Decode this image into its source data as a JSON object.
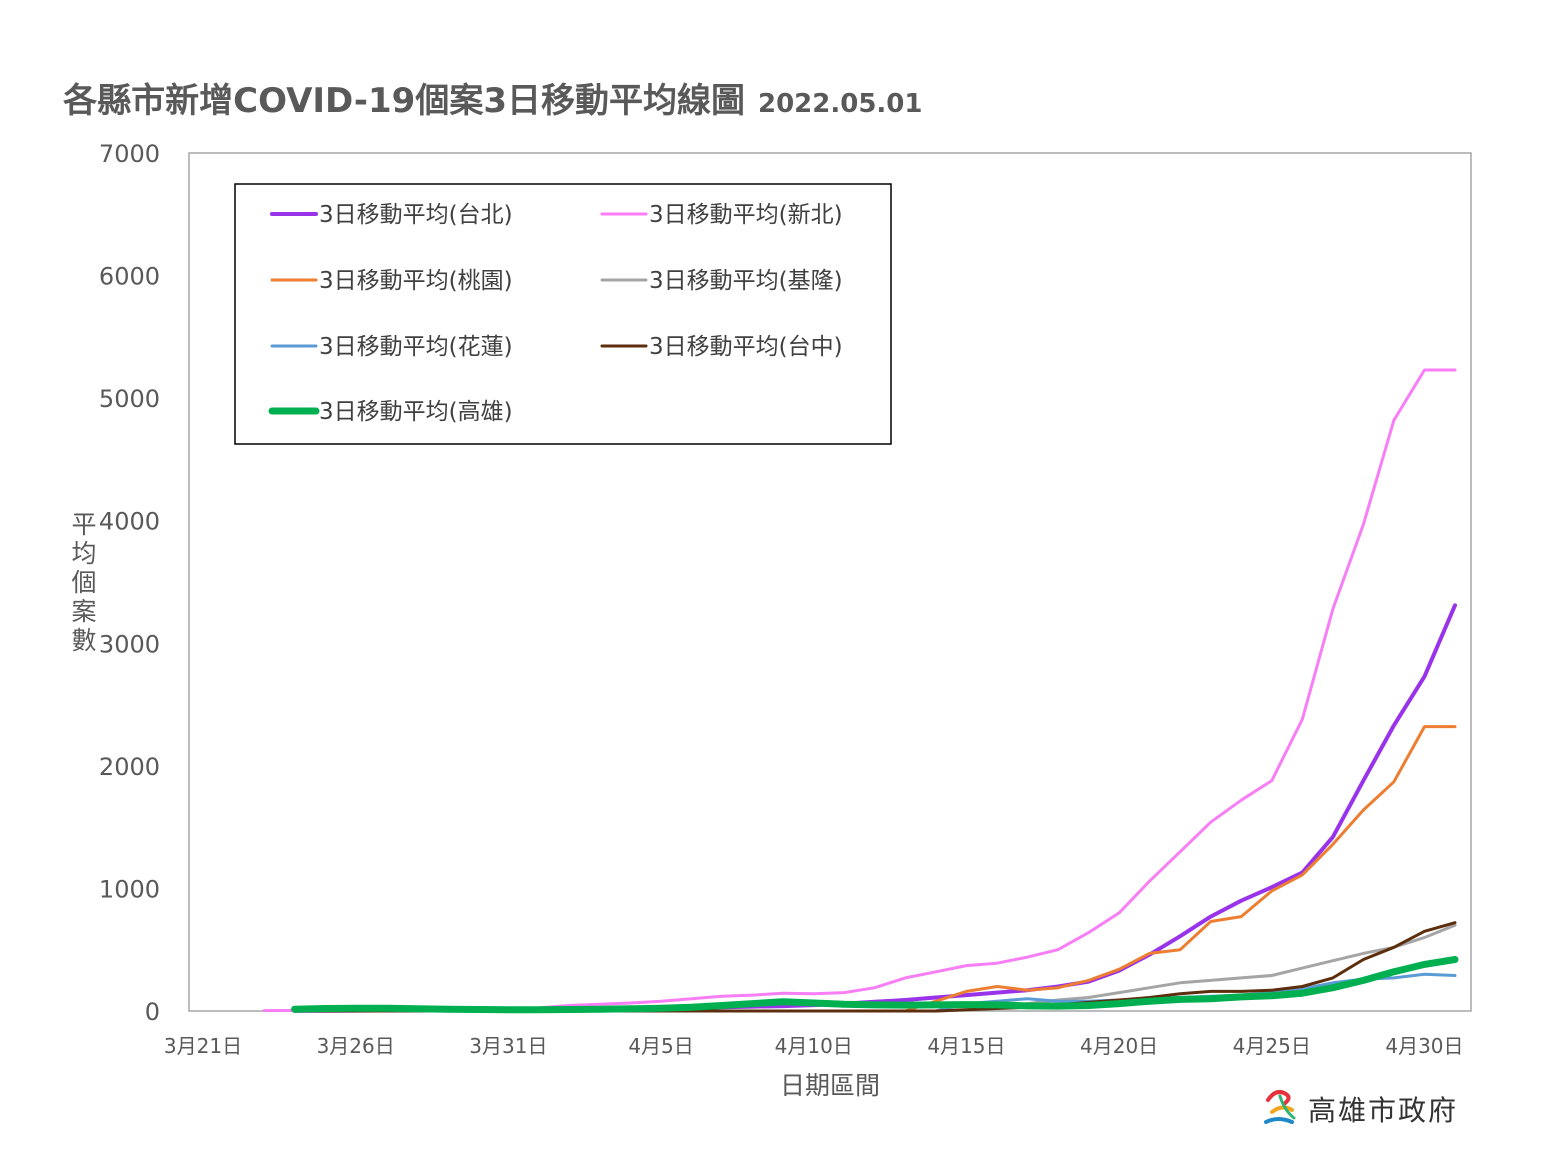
{
  "chart_data": {
    "type": "line",
    "title": "各縣市新增COVID-19個案3日移動平均線圖",
    "subtitle": "2022.05.01",
    "xlabel": "日期區間",
    "ylabel": "平均個案數",
    "ylim": [
      0,
      7000
    ],
    "yticks": [
      "0",
      "1000",
      "2000",
      "3000",
      "4000",
      "5000",
      "6000",
      "7000"
    ],
    "x": [
      "3/21",
      "3/22",
      "3/23",
      "3/24",
      "3/25",
      "3/26",
      "3/27",
      "3/28",
      "3/29",
      "3/30",
      "3/31",
      "4/1",
      "4/2",
      "4/3",
      "4/4",
      "4/5",
      "4/6",
      "4/7",
      "4/8",
      "4/9",
      "4/10",
      "4/11",
      "4/12",
      "4/13",
      "4/14",
      "4/15",
      "4/16",
      "4/17",
      "4/18",
      "4/19",
      "4/20",
      "4/21",
      "4/22",
      "4/23",
      "4/24",
      "4/25",
      "4/26",
      "4/27",
      "4/28",
      "4/29",
      "4/30",
      "5/1"
    ],
    "xtick_labels": [
      "3月21日",
      "3月26日",
      "3月31日",
      "4月5日",
      "4月10日",
      "4月15日",
      "4月20日",
      "4月25日",
      "4月30日"
    ],
    "xtick_indices": [
      0,
      5,
      10,
      15,
      20,
      25,
      30,
      35,
      40
    ],
    "grid": false,
    "legend_position": "top-left",
    "series": [
      {
        "name": "3日移動平均(台北)",
        "color": "#9933ea",
        "width": 4,
        "values": [
          null,
          null,
          null,
          1,
          2,
          3,
          4,
          5,
          6,
          7,
          8,
          10,
          12,
          15,
          18,
          22,
          26,
          30,
          36,
          40,
          48,
          60,
          75,
          90,
          110,
          130,
          150,
          170,
          200,
          240,
          330,
          460,
          610,
          770,
          900,
          1010,
          1130,
          1420,
          1880,
          2330,
          2730,
          3310
        ]
      },
      {
        "name": "3日移動平均(新北)",
        "color": "#f87ef5",
        "width": 3,
        "values": [
          null,
          null,
          3,
          4,
          5,
          6,
          7,
          8,
          10,
          12,
          15,
          25,
          45,
          55,
          65,
          80,
          100,
          120,
          130,
          145,
          140,
          150,
          190,
          270,
          320,
          370,
          390,
          440,
          500,
          640,
          800,
          1060,
          1300,
          1540,
          1720,
          1880,
          2380,
          3280,
          3970,
          4820,
          5230,
          5230
        ]
      },
      {
        "name": "3日移動平均(桃園)",
        "color": "#ed7d31",
        "width": 3,
        "values": [
          null,
          null,
          null,
          0,
          0,
          0,
          0,
          0,
          0,
          0,
          0,
          0,
          0,
          0,
          0,
          0,
          0,
          0,
          0,
          0,
          0,
          0,
          0,
          0,
          80,
          160,
          200,
          170,
          190,
          250,
          340,
          470,
          500,
          730,
          770,
          980,
          1110,
          1360,
          1640,
          1870,
          2320,
          2320
        ]
      },
      {
        "name": "3日移動平均(基隆)",
        "color": "#a5a5a5",
        "width": 3,
        "values": [
          null,
          null,
          null,
          0,
          0,
          0,
          0,
          0,
          0,
          0,
          0,
          0,
          0,
          0,
          0,
          0,
          0,
          0,
          0,
          0,
          0,
          0,
          0,
          0,
          0,
          10,
          30,
          60,
          90,
          110,
          150,
          190,
          230,
          250,
          270,
          290,
          350,
          410,
          470,
          520,
          600,
          700
        ]
      },
      {
        "name": "3日移動平均(花蓮)",
        "color": "#5b9bd5",
        "width": 3,
        "values": [
          null,
          null,
          null,
          0,
          0,
          0,
          0,
          0,
          0,
          0,
          0,
          0,
          0,
          0,
          0,
          0,
          0,
          0,
          0,
          0,
          0,
          0,
          0,
          0,
          0,
          60,
          80,
          100,
          80,
          80,
          90,
          100,
          110,
          120,
          130,
          150,
          180,
          230,
          260,
          270,
          300,
          290
        ]
      },
      {
        "name": "3日移動平均(台中)",
        "color": "#5c2e0d",
        "width": 3,
        "values": [
          null,
          null,
          null,
          0,
          0,
          0,
          0,
          0,
          0,
          0,
          0,
          0,
          0,
          0,
          0,
          0,
          0,
          0,
          0,
          0,
          0,
          0,
          0,
          0,
          0,
          10,
          20,
          30,
          50,
          70,
          90,
          110,
          140,
          160,
          160,
          170,
          200,
          270,
          420,
          520,
          650,
          720
        ]
      },
      {
        "name": "3日移動平均(高雄)",
        "color": "#00b050",
        "width": 7,
        "values": [
          null,
          null,
          null,
          15,
          20,
          22,
          22,
          18,
          15,
          12,
          10,
          10,
          12,
          15,
          18,
          22,
          30,
          45,
          60,
          75,
          65,
          55,
          50,
          48,
          50,
          52,
          50,
          42,
          40,
          45,
          60,
          80,
          95,
          100,
          115,
          125,
          145,
          190,
          250,
          320,
          380,
          420
        ]
      }
    ]
  },
  "logo": {
    "text": "高雄市政府"
  }
}
